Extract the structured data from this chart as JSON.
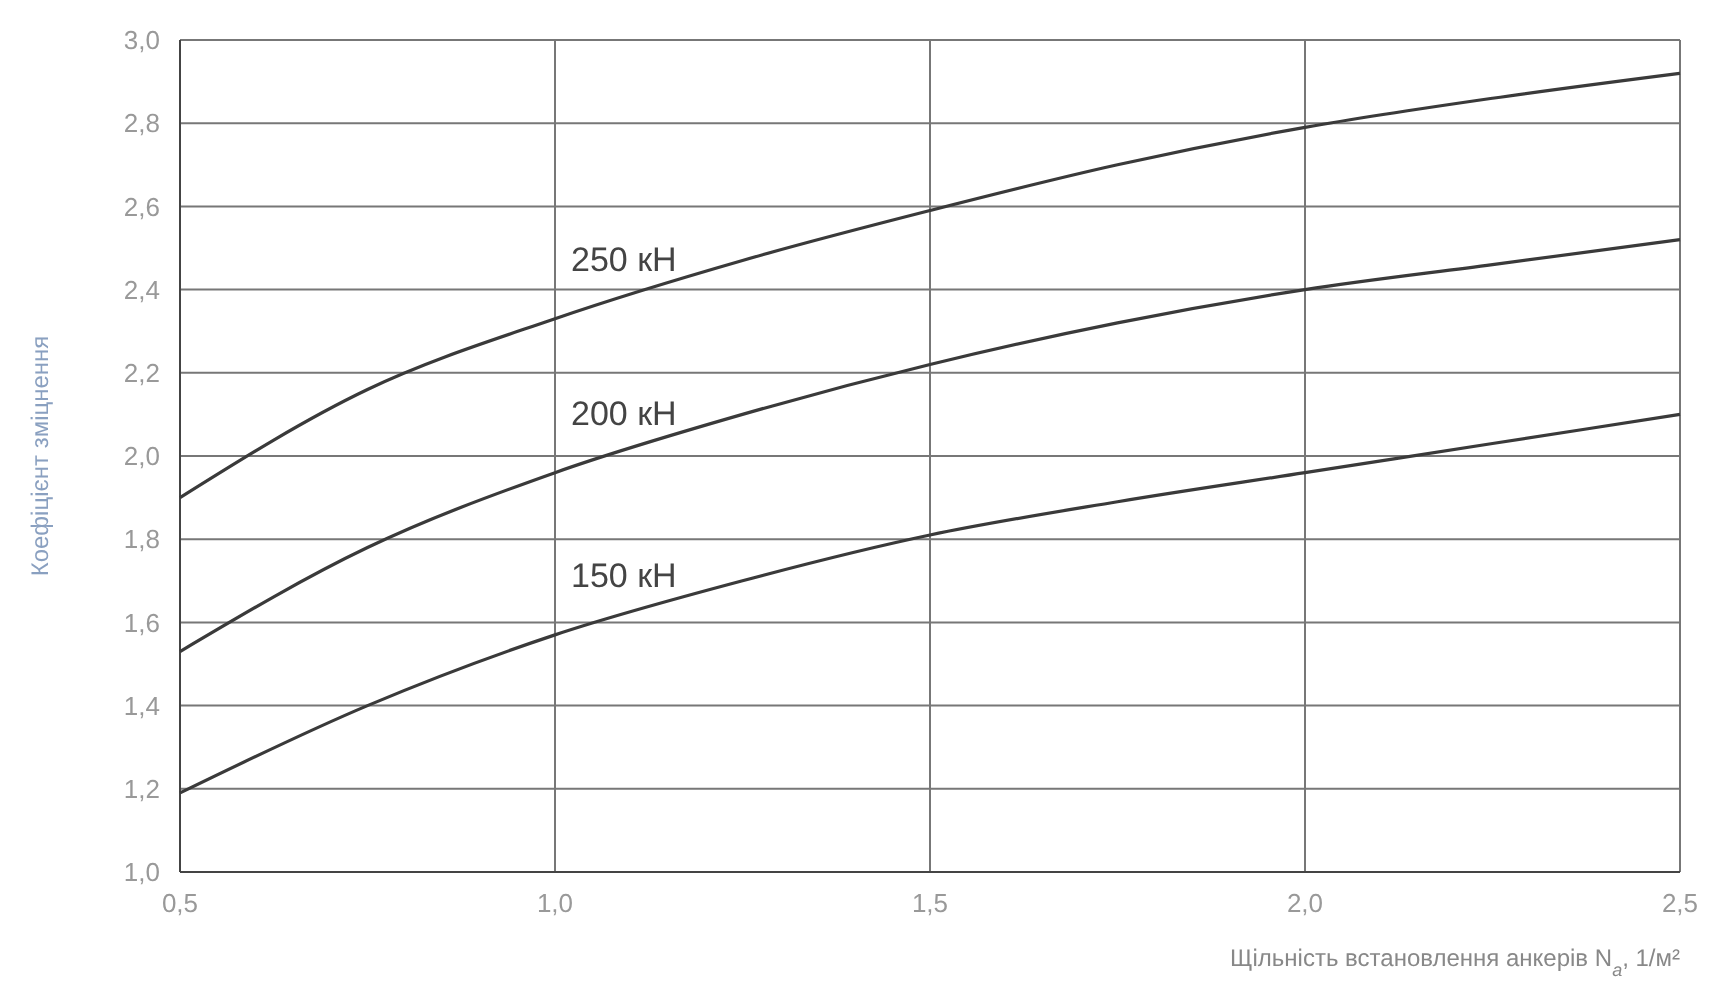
{
  "chart_data": {
    "type": "line",
    "xlabel": "Щільність встановлення анкерів N$_{a}$, 1/м²",
    "ylabel": "Коефіцієнт зміцнення",
    "x": [
      0.5,
      0.75,
      1.0,
      1.25,
      1.5,
      1.75,
      2.0,
      2.25,
      2.5
    ],
    "series": [
      {
        "name": "250 кН",
        "color": "#3a3a3a",
        "values": [
          1.9,
          2.16,
          2.33,
          2.47,
          2.59,
          2.7,
          2.79,
          2.86,
          2.92
        ]
      },
      {
        "name": "200 кН",
        "color": "#3a3a3a",
        "values": [
          1.53,
          1.78,
          1.96,
          2.1,
          2.22,
          2.32,
          2.4,
          2.46,
          2.52
        ]
      },
      {
        "name": "150 кН",
        "color": "#3a3a3a",
        "values": [
          1.19,
          1.4,
          1.57,
          1.7,
          1.81,
          1.89,
          1.96,
          2.03,
          2.1
        ]
      }
    ],
    "xlim": [
      0.5,
      2.5
    ],
    "xticks": [
      {
        "value": 0.5,
        "label": "0,5"
      },
      {
        "value": 1.0,
        "label": "1,0"
      },
      {
        "value": 1.5,
        "label": "1,5"
      },
      {
        "value": 2.0,
        "label": "2,0"
      },
      {
        "value": 2.5,
        "label": "2,5"
      }
    ],
    "ylim": [
      1.0,
      3.0
    ],
    "yticks": [
      {
        "value": 1.0,
        "label": "1,0"
      },
      {
        "value": 1.2,
        "label": "1,2"
      },
      {
        "value": 1.4,
        "label": "1,4"
      },
      {
        "value": 1.6,
        "label": "1,6"
      },
      {
        "value": 1.8,
        "label": "1,8"
      },
      {
        "value": 2.0,
        "label": "2,0"
      },
      {
        "value": 2.2,
        "label": "2,2"
      },
      {
        "value": 2.4,
        "label": "2,4"
      },
      {
        "value": 2.6,
        "label": "2,6"
      },
      {
        "value": 2.8,
        "label": "2,8"
      },
      {
        "value": 3.0,
        "label": "3,0"
      }
    ],
    "grid": true,
    "marker": "none",
    "line_style": "solid"
  }
}
